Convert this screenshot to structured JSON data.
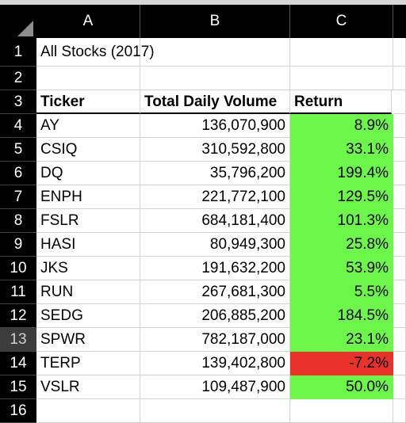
{
  "colors": {
    "positive": "#6cf64a",
    "negative": "#e8322a"
  },
  "column_headers": [
    "A",
    "B",
    "C"
  ],
  "row_numbers": [
    "1",
    "2",
    "3",
    "4",
    "5",
    "6",
    "7",
    "8",
    "9",
    "10",
    "11",
    "12",
    "13",
    "14",
    "15",
    "16"
  ],
  "sheet": {
    "title": "All Stocks (2017)",
    "headers": {
      "ticker": "Ticker",
      "volume": "Total Daily Volume",
      "return": "Return"
    },
    "rows": [
      {
        "ticker": "AY",
        "volume": "136,070,900",
        "return": "8.9%",
        "status": "positive"
      },
      {
        "ticker": "CSIQ",
        "volume": "310,592,800",
        "return": "33.1%",
        "status": "positive"
      },
      {
        "ticker": "DQ",
        "volume": "35,796,200",
        "return": "199.4%",
        "status": "positive"
      },
      {
        "ticker": "ENPH",
        "volume": "221,772,100",
        "return": "129.5%",
        "status": "positive"
      },
      {
        "ticker": "FSLR",
        "volume": "684,181,400",
        "return": "101.3%",
        "status": "positive"
      },
      {
        "ticker": "HASI",
        "volume": "80,949,300",
        "return": "25.8%",
        "status": "positive"
      },
      {
        "ticker": "JKS",
        "volume": "191,632,200",
        "return": "53.9%",
        "status": "positive"
      },
      {
        "ticker": "RUN",
        "volume": "267,681,300",
        "return": "5.5%",
        "status": "positive"
      },
      {
        "ticker": "SEDG",
        "volume": "206,885,200",
        "return": "184.5%",
        "status": "positive"
      },
      {
        "ticker": "SPWR",
        "volume": "782,187,000",
        "return": "23.1%",
        "status": "positive"
      },
      {
        "ticker": "TERP",
        "volume": "139,402,800",
        "return": "-7.2%",
        "status": "negative"
      },
      {
        "ticker": "VSLR",
        "volume": "109,487,900",
        "return": "50.0%",
        "status": "positive"
      }
    ]
  }
}
